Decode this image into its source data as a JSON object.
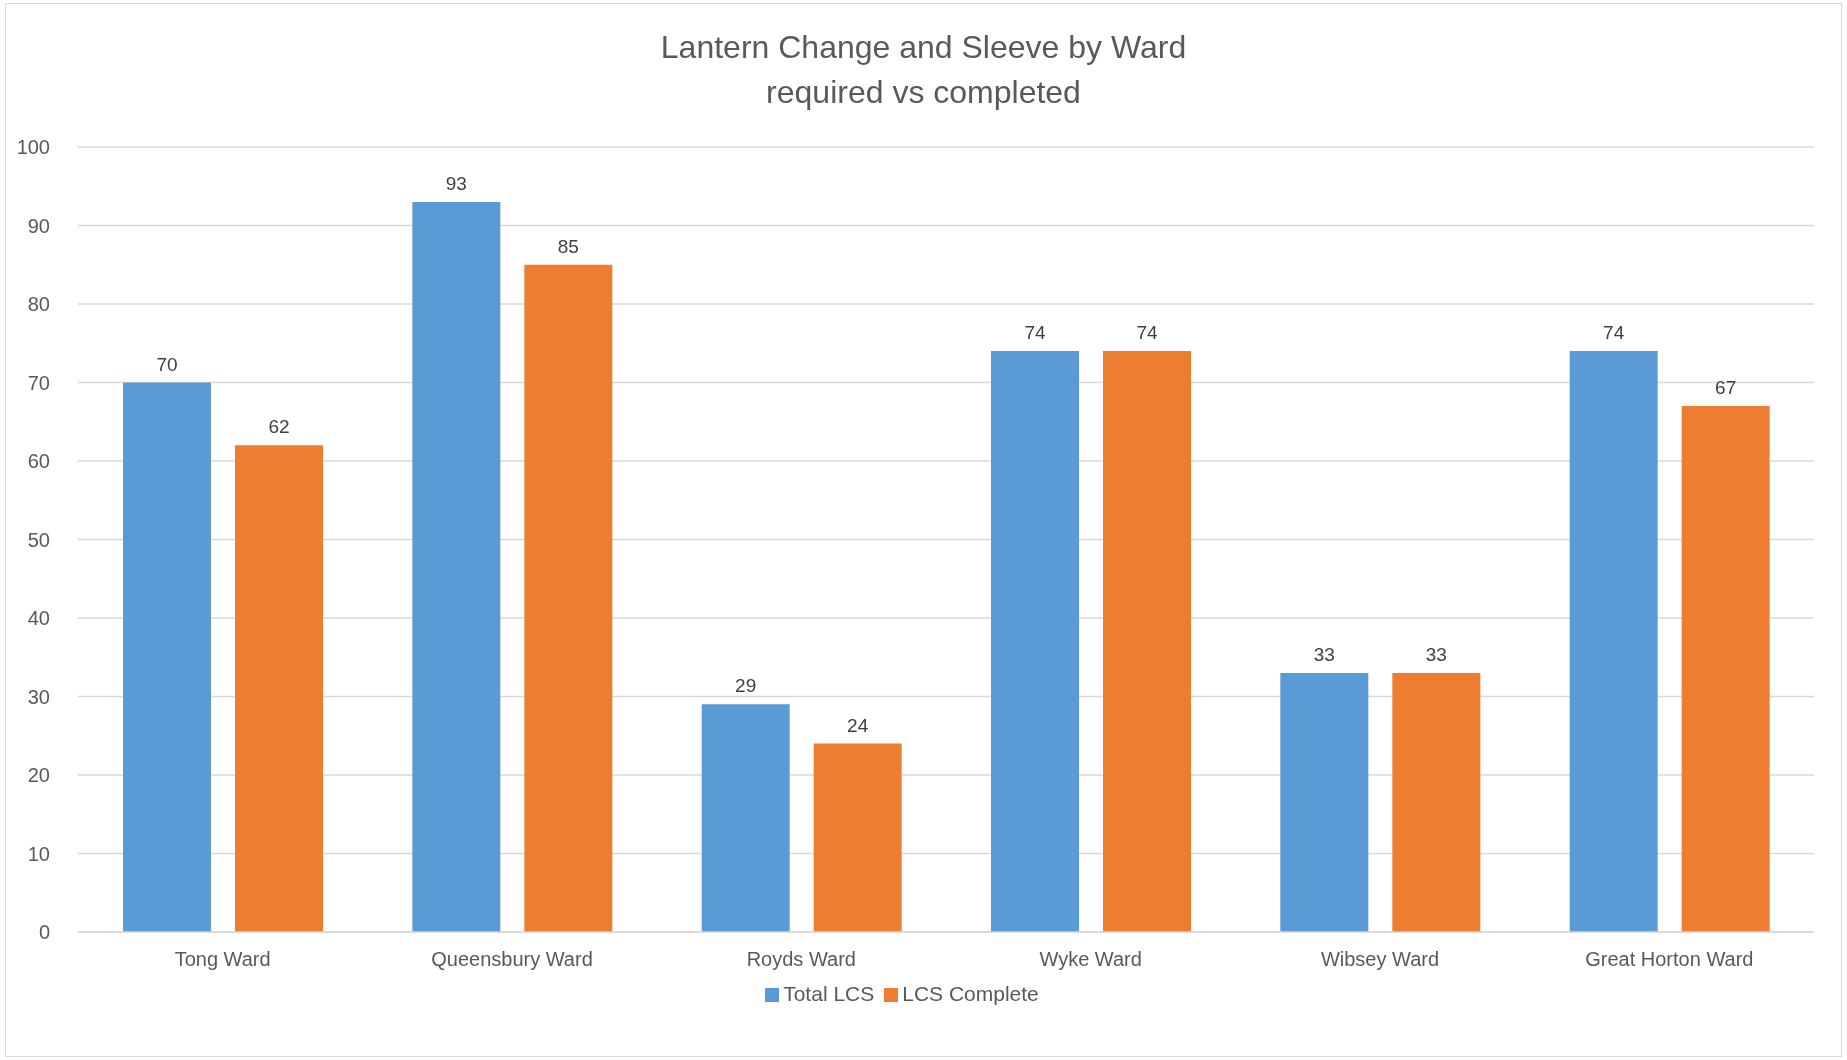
{
  "chart_data": {
    "type": "bar",
    "title": "Lantern Change and Sleeve by Ward\nrequired vs completed",
    "categories": [
      "Tong Ward",
      "Queensbury Ward",
      "Royds Ward",
      "Wyke Ward",
      "Wibsey Ward",
      "Great Horton Ward"
    ],
    "series": [
      {
        "name": "Total LCS",
        "color": "#5b9bd5",
        "values": [
          70,
          93,
          29,
          74,
          33,
          74
        ]
      },
      {
        "name": "LCS Complete",
        "color": "#ed7d31",
        "values": [
          62,
          85,
          24,
          74,
          33,
          67
        ]
      }
    ],
    "ylim": [
      0,
      100
    ],
    "yticks": [
      0,
      10,
      20,
      30,
      40,
      50,
      60,
      70,
      80,
      90,
      100
    ],
    "grid": "y",
    "legend": "bottom",
    "data_labels": true
  }
}
